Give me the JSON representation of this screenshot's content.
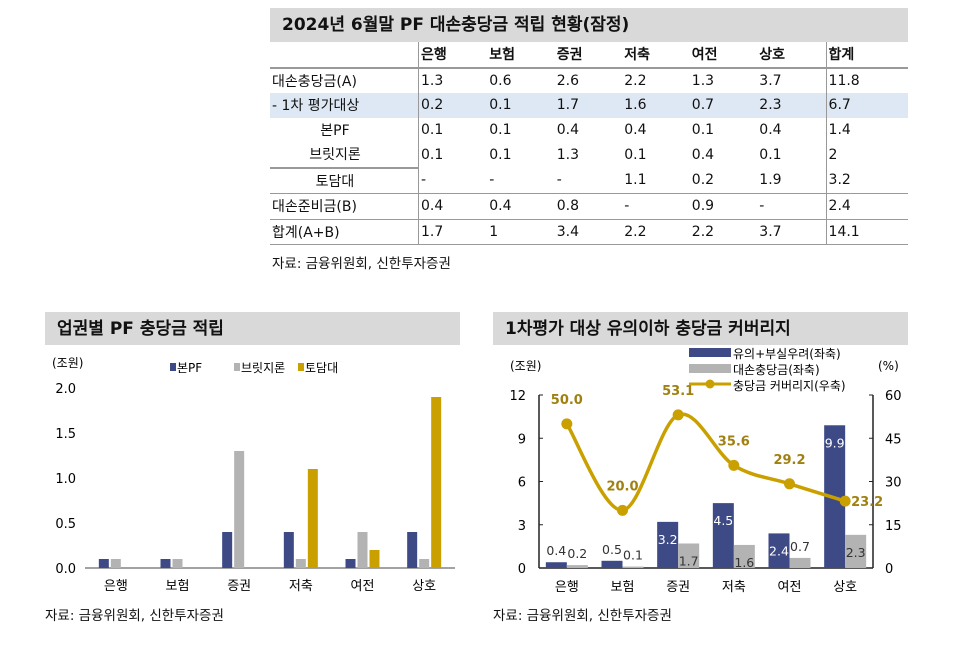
{
  "table": {
    "title": "2024년 6월말 PF 대손충당금 적립 현황(잠정)",
    "columns": [
      "",
      "은행",
      "보험",
      "증권",
      "저축",
      "여전",
      "상호",
      "합계"
    ],
    "rows": [
      [
        "대손충당금(A)",
        "1.3",
        "0.6",
        "2.6",
        "2.2",
        "1.3",
        "3.7",
        "11.8"
      ],
      [
        "- 1차 평가대상",
        "0.2",
        "0.1",
        "1.7",
        "1.6",
        "0.7",
        "2.3",
        "6.7"
      ],
      [
        "본PF",
        "0.1",
        "0.1",
        "0.4",
        "0.4",
        "0.1",
        "0.4",
        "1.4"
      ],
      [
        "브릿지론",
        "0.1",
        "0.1",
        "1.3",
        "0.1",
        "0.4",
        "0.1",
        "2"
      ],
      [
        "토담대",
        "-",
        "-",
        "-",
        "1.1",
        "0.2",
        "1.9",
        "3.2"
      ],
      [
        "대손준비금(B)",
        "0.4",
        "0.4",
        "0.8",
        "-",
        "0.9",
        "-",
        "2.4"
      ],
      [
        "합계(A+B)",
        "1.7",
        "1",
        "3.4",
        "2.2",
        "2.2",
        "3.7",
        "14.1"
      ]
    ],
    "source": "자료: 금융위원회, 신한투자증권"
  },
  "chart_data": [
    {
      "type": "bar",
      "title": "업권별 PF 충당금 적립",
      "ylabel": "(조원)",
      "categories": [
        "은행",
        "보험",
        "증권",
        "저축",
        "여전",
        "상호"
      ],
      "ylim": [
        0,
        2.0
      ],
      "yticks": [
        "0.0",
        "0.5",
        "1.0",
        "1.5",
        "2.0"
      ],
      "legend": "top",
      "series": [
        {
          "name": "본PF",
          "color": "#3d4a85",
          "values": [
            0.1,
            0.1,
            0.4,
            0.4,
            0.1,
            0.4
          ]
        },
        {
          "name": "브릿지론",
          "color": "#b3b3b3",
          "values": [
            0.1,
            0.1,
            1.3,
            0.1,
            0.4,
            0.1
          ]
        },
        {
          "name": "토담대",
          "color": "#c9a000",
          "values": [
            0,
            0,
            0,
            1.1,
            0.2,
            1.9
          ]
        }
      ],
      "source": "자료: 금융위원회, 신한투자증권"
    },
    {
      "type": "bar+line",
      "title": "1차평가 대상 유의이하 충당금 커버리지",
      "ylabel": "(조원)",
      "y2label": "(%)",
      "categories": [
        "은행",
        "보험",
        "증권",
        "저축",
        "여전",
        "상호"
      ],
      "ylim": [
        0,
        12
      ],
      "yticks": [
        "0",
        "3",
        "6",
        "9",
        "12"
      ],
      "y2lim": [
        0,
        60
      ],
      "y2ticks": [
        "0",
        "15",
        "30",
        "45",
        "60"
      ],
      "legend": "top-right",
      "series": [
        {
          "name": "유의+부실우려(좌축)",
          "color": "#3d4a85",
          "values": [
            0.4,
            0.5,
            3.2,
            4.5,
            2.4,
            9.9
          ],
          "labels": [
            "0.4",
            "0.5",
            "3.2",
            "4.5",
            "2.4",
            "9.9"
          ]
        },
        {
          "name": "대손충당금(좌축)",
          "color": "#b3b3b3",
          "values": [
            0.2,
            0.1,
            1.7,
            1.6,
            0.7,
            2.3
          ],
          "labels": [
            "0.2",
            "0.1",
            "1.7",
            "1.6",
            "0.7",
            "2.3"
          ]
        },
        {
          "name": "충당금 커버리지(우축)",
          "color": "#c9a000",
          "values": [
            50.0,
            20.0,
            53.1,
            35.6,
            29.2,
            23.2
          ],
          "labels": [
            "50.0",
            "20.0",
            "53.1",
            "35.6",
            "29.2",
            "23.2"
          ]
        }
      ],
      "source": "자료: 금융위원회, 신한투자증권"
    }
  ]
}
